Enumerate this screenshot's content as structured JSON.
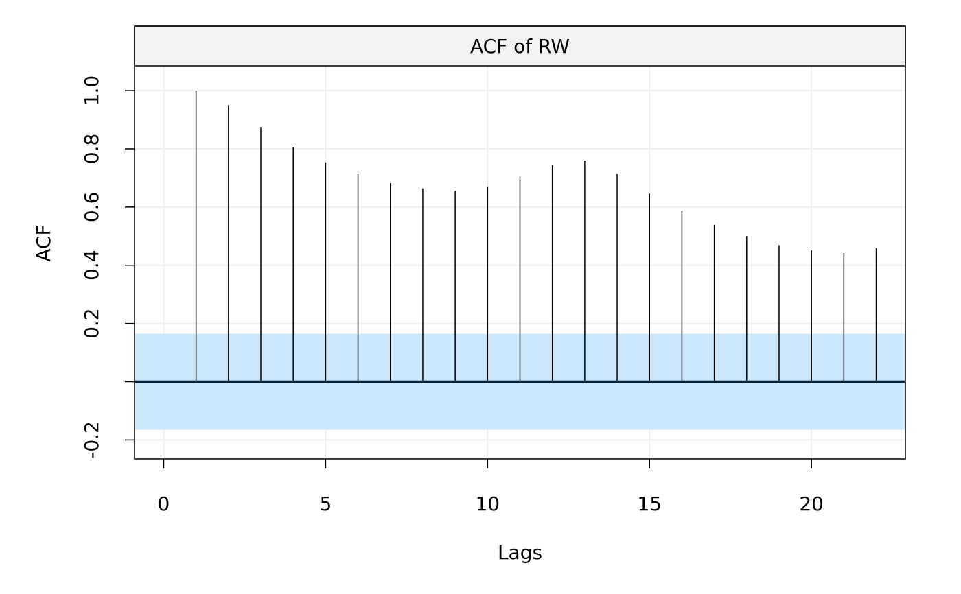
{
  "chart_data": {
    "type": "bar",
    "title": "ACF of RW",
    "xlabel": "Lags",
    "ylabel": "ACF",
    "xlim": [
      -0.9,
      22.9
    ],
    "ylim": [
      -0.265,
      1.085
    ],
    "x_ticks": [
      0,
      5,
      10,
      15,
      20
    ],
    "x_tick_labels": [
      "0",
      "5",
      "10",
      "15",
      "20"
    ],
    "y_ticks": [
      -0.2,
      0.0,
      0.2,
      0.4,
      0.6,
      0.8,
      1.0
    ],
    "y_tick_labels": [
      "-0.2",
      "",
      "0.2",
      "0.4",
      "0.6",
      "0.8",
      "1.0"
    ],
    "grid": true,
    "lags": [
      1,
      2,
      3,
      4,
      5,
      6,
      7,
      8,
      9,
      10,
      11,
      12,
      13,
      14,
      15,
      16,
      17,
      18,
      19,
      20,
      21,
      22
    ],
    "values": [
      1.0,
      0.95,
      0.875,
      0.805,
      0.753,
      0.714,
      0.682,
      0.664,
      0.656,
      0.671,
      0.704,
      0.744,
      0.76,
      0.714,
      0.646,
      0.587,
      0.539,
      0.5,
      0.469,
      0.451,
      0.442,
      0.459
    ],
    "confidence_band": [
      -0.165,
      0.165
    ],
    "colors": {
      "strip_background": "#f2f2f2",
      "confidence_band": "#cce8fd",
      "zero_line": "#07233b",
      "grid": "#f0f0f0",
      "spike": "#000000"
    }
  }
}
